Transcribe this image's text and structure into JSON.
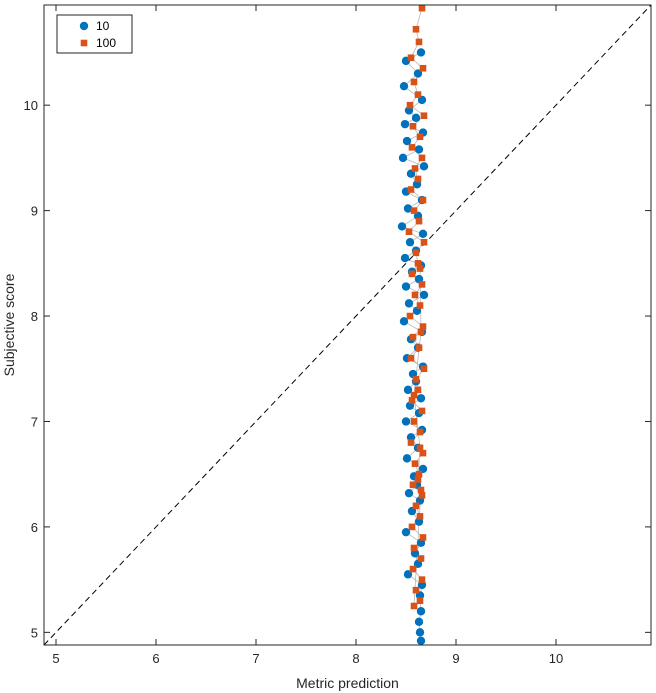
{
  "chart_data": {
    "type": "scatter",
    "title": "",
    "xlabel": "Metric prediction",
    "ylabel": "Subjective score",
    "xlim": [
      4.88,
      10.95
    ],
    "ylim": [
      4.88,
      10.95
    ],
    "xticks": [
      5,
      6,
      7,
      8,
      9,
      10
    ],
    "yticks": [
      5,
      6,
      7,
      8,
      9,
      10
    ],
    "grid": false,
    "reference_line": "y = x",
    "legend": {
      "position": "top-left"
    },
    "series": [
      {
        "name": "10",
        "marker": "circle",
        "color": "#0072BD",
        "x": [
          8.65,
          8.5,
          8.62,
          8.48,
          8.66,
          8.53,
          8.6,
          8.49,
          8.67,
          8.51,
          8.63,
          8.47,
          8.68,
          8.55,
          8.61,
          8.5,
          8.66,
          8.52,
          8.62,
          8.46,
          8.67,
          8.54,
          8.6,
          8.49,
          8.65,
          8.56,
          8.63,
          8.5,
          8.68,
          8.53,
          8.61,
          8.48,
          8.66,
          8.55,
          8.62,
          8.51,
          8.67,
          8.57,
          8.6,
          8.52,
          8.65,
          8.54,
          8.63,
          8.5,
          8.66,
          8.55,
          8.62,
          8.51,
          8.67,
          8.58,
          8.61,
          8.53,
          8.64,
          8.56,
          8.63,
          8.5,
          8.65,
          8.59,
          8.62,
          8.52,
          8.66,
          8.64,
          8.65,
          8.63,
          8.64,
          8.65
        ],
        "y": [
          10.5,
          10.42,
          10.3,
          10.18,
          10.05,
          9.95,
          9.88,
          9.82,
          9.74,
          9.66,
          9.58,
          9.5,
          9.42,
          9.35,
          9.25,
          9.18,
          9.1,
          9.02,
          8.95,
          8.85,
          8.78,
          8.7,
          8.62,
          8.55,
          8.48,
          8.42,
          8.35,
          8.28,
          8.2,
          8.12,
          8.05,
          7.95,
          7.85,
          7.78,
          7.7,
          7.6,
          7.52,
          7.45,
          7.38,
          7.3,
          7.22,
          7.15,
          7.08,
          7.0,
          6.92,
          6.85,
          6.75,
          6.65,
          6.55,
          6.48,
          6.4,
          6.32,
          6.25,
          6.15,
          6.05,
          5.95,
          5.85,
          5.75,
          5.65,
          5.55,
          5.45,
          5.35,
          5.2,
          5.1,
          5.0,
          4.92
        ]
      },
      {
        "name": "100",
        "marker": "square",
        "color": "#D95319",
        "x": [
          8.66,
          8.6,
          8.63,
          8.55,
          8.67,
          8.58,
          8.62,
          8.54,
          8.68,
          8.57,
          8.64,
          8.56,
          8.66,
          8.59,
          8.62,
          8.55,
          8.67,
          8.58,
          8.63,
          8.53,
          8.68,
          8.6,
          8.62,
          8.56,
          8.66,
          8.59,
          8.64,
          8.54,
          8.67,
          8.57,
          8.63,
          8.55,
          8.68,
          8.6,
          8.62,
          8.56,
          8.66,
          8.58,
          8.64,
          8.55,
          8.67,
          8.59,
          8.63,
          8.57,
          8.66,
          8.6,
          8.64,
          8.56,
          8.67,
          8.58,
          8.65,
          8.57,
          8.66,
          8.6,
          8.64,
          8.58,
          8.65,
          8.62,
          8.64,
          8.58,
          8.65,
          8.64
        ],
        "y": [
          10.92,
          10.72,
          10.6,
          10.45,
          10.35,
          10.22,
          10.1,
          10.0,
          9.9,
          9.8,
          9.7,
          9.6,
          9.5,
          9.4,
          9.3,
          9.2,
          9.1,
          9.0,
          8.9,
          8.8,
          8.7,
          8.6,
          8.5,
          8.4,
          8.3,
          8.2,
          8.1,
          8.0,
          7.9,
          7.8,
          7.7,
          7.6,
          7.5,
          7.4,
          7.3,
          7.2,
          7.1,
          7.0,
          6.9,
          6.8,
          6.7,
          6.6,
          6.5,
          6.4,
          6.3,
          6.2,
          6.1,
          6.0,
          5.9,
          5.8,
          5.7,
          5.6,
          5.5,
          5.4,
          5.3,
          5.25,
          6.35,
          6.45,
          6.75,
          7.25,
          7.85,
          8.45
        ]
      }
    ]
  }
}
